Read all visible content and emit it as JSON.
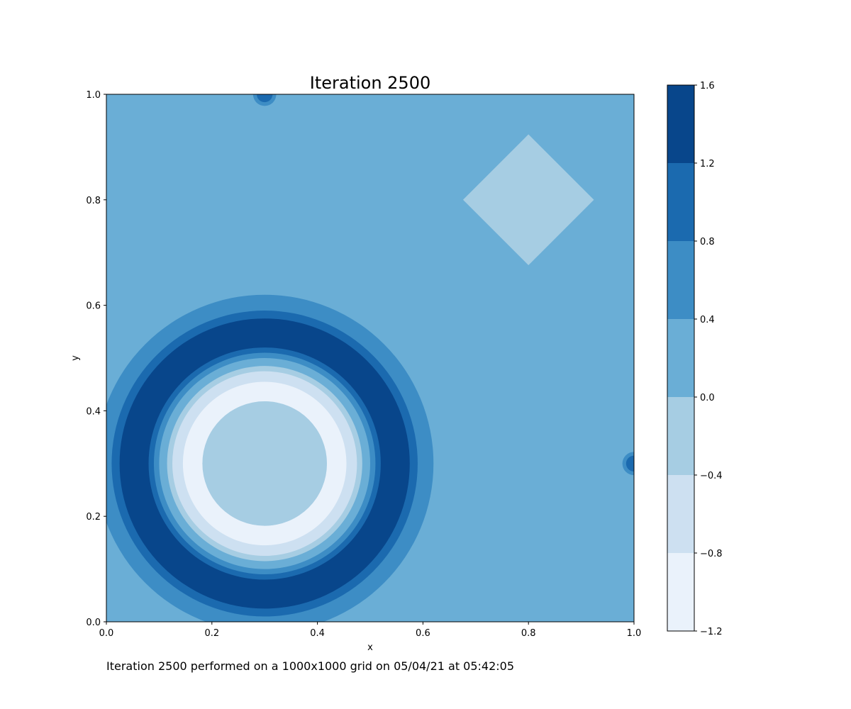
{
  "caption": "Iteration 2500 performed on a 1000x1000 grid on 05/04/21 at 05:42:05",
  "chart_data": {
    "type": "heatmap",
    "subtype": "filled-contour",
    "title": "Iteration 2500",
    "xlabel": "x",
    "ylabel": "y",
    "xlim": [
      0.0,
      1.0
    ],
    "ylim": [
      0.0,
      1.0
    ],
    "xticks": [
      "0.0",
      "0.2",
      "0.4",
      "0.6",
      "0.8",
      "1.0"
    ],
    "yticks": [
      "0.0",
      "0.2",
      "0.4",
      "0.6",
      "0.8",
      "1.0"
    ],
    "grid": false,
    "colormap": "Blues",
    "colorbar": {
      "levels": [
        -1.2,
        -0.8,
        -0.4,
        0.0,
        0.4,
        0.8,
        1.2,
        1.6
      ],
      "tick_labels": [
        "−1.2",
        "−0.8",
        "−0.4",
        "0.0",
        "0.4",
        "0.8",
        "1.2",
        "1.6"
      ],
      "colors": [
        "#eaf2fb",
        "#cde0f1",
        "#a6cde3",
        "#6aaed6",
        "#3d8dc5",
        "#1b6aaf",
        "#08468b"
      ]
    },
    "background_value": 0.2,
    "features": [
      {
        "shape": "ring",
        "center": [
          0.3,
          0.3
        ],
        "bands": [
          {
            "outer_radius": 0.32,
            "value": 0.6
          },
          {
            "outer_radius": 0.29,
            "value": 1.0
          },
          {
            "outer_radius": 0.275,
            "value": 1.4
          },
          {
            "outer_radius": 0.22,
            "value": 1.0
          },
          {
            "outer_radius": 0.21,
            "value": 0.6
          },
          {
            "outer_radius": 0.2,
            "value": 0.2
          },
          {
            "outer_radius": 0.185,
            "value": -0.2
          },
          {
            "outer_radius": 0.175,
            "value": -0.6
          },
          {
            "outer_radius": 0.155,
            "value": -1.0
          },
          {
            "outer_radius": 0.118,
            "value": -0.6
          },
          {
            "outer_radius": 0.118,
            "value": -0.2
          }
        ]
      },
      {
        "shape": "ring",
        "center": [
          0.3,
          1.0
        ],
        "bands": [
          {
            "outer_radius": 0.022,
            "value": 0.6
          },
          {
            "outer_radius": 0.015,
            "value": 1.0
          }
        ]
      },
      {
        "shape": "ring",
        "center": [
          1.0,
          0.3
        ],
        "bands": [
          {
            "outer_radius": 0.022,
            "value": 0.6
          },
          {
            "outer_radius": 0.015,
            "value": 1.0
          }
        ]
      },
      {
        "shape": "diamond",
        "center": [
          0.8,
          0.8
        ],
        "half_width": 0.124,
        "half_height": 0.124,
        "value": -0.2
      }
    ]
  }
}
